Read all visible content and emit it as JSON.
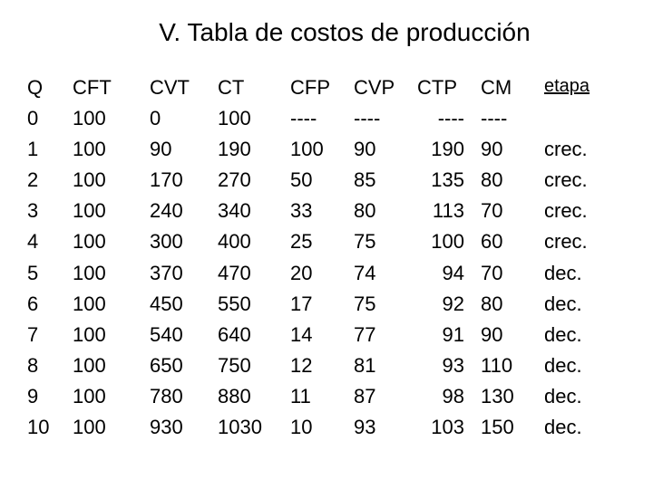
{
  "title": "V. Tabla de costos de producción",
  "headers": {
    "q": "Q",
    "cft": "CFT",
    "cvt": "CVT",
    "ct": "CT",
    "cfp": "CFP",
    "cvp": "CVP",
    "ctp": "CTP",
    "cm": "CM",
    "etapa": "etapa"
  },
  "rows": [
    {
      "q": "0",
      "cft": "100",
      "cvt": "0",
      "ct": "100",
      "cfp": "----",
      "cvp": "----",
      "ctp": "----",
      "cm": "----",
      "etapa": ""
    },
    {
      "q": "1",
      "cft": "100",
      "cvt": "90",
      "ct": "190",
      "cfp": "100",
      "cvp": "90",
      "ctp": "190",
      "cm": "90",
      "etapa": "crec."
    },
    {
      "q": "2",
      "cft": "100",
      "cvt": "170",
      "ct": "270",
      "cfp": "50",
      "cvp": "85",
      "ctp": "135",
      "cm": "80",
      "etapa": "crec."
    },
    {
      "q": "3",
      "cft": "100",
      "cvt": "240",
      "ct": "340",
      "cfp": "33",
      "cvp": "80",
      "ctp": "113",
      "cm": "70",
      "etapa": "crec."
    },
    {
      "q": "4",
      "cft": "100",
      "cvt": "300",
      "ct": "400",
      "cfp": "25",
      "cvp": "75",
      "ctp": "100",
      "cm": "60",
      "etapa": "crec."
    },
    {
      "q": "5",
      "cft": "100",
      "cvt": "370",
      "ct": "470",
      "cfp": "20",
      "cvp": "74",
      "ctp": "94",
      "cm": "70",
      "etapa": "dec."
    },
    {
      "q": "6",
      "cft": "100",
      "cvt": "450",
      "ct": "550",
      "cfp": "17",
      "cvp": "75",
      "ctp": "92",
      "cm": "80",
      "etapa": "dec."
    },
    {
      "q": "7",
      "cft": "100",
      "cvt": "540",
      "ct": "640",
      "cfp": "14",
      "cvp": "77",
      "ctp": "91",
      "cm": "90",
      "etapa": "dec."
    },
    {
      "q": "8",
      "cft": "100",
      "cvt": "650",
      "ct": "750",
      "cfp": "12",
      "cvp": "81",
      "ctp": "93",
      "cm": "110",
      "etapa": "dec."
    },
    {
      "q": "9",
      "cft": "100",
      "cvt": "780",
      "ct": "880",
      "cfp": "11",
      "cvp": "87",
      "ctp": "98",
      "cm": "130",
      "etapa": "dec."
    },
    {
      "q": "10",
      "cft": "100",
      "cvt": "930",
      "ct": "1030",
      "cfp": "10",
      "cvp": "93",
      "ctp": "103",
      "cm": "150",
      "etapa": "dec."
    }
  ],
  "style": {
    "background": "#ffffff",
    "text_color": "#000000",
    "title_fontsize": 28,
    "body_fontsize": 22,
    "font_family": "Arial"
  }
}
